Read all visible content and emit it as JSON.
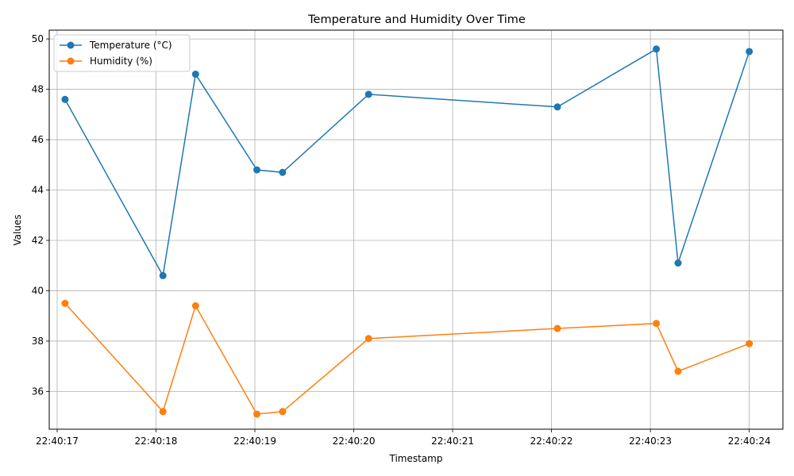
{
  "chart_data": {
    "type": "line",
    "title": "Temperature and Humidity Over Time",
    "xlabel": "Timestamp",
    "ylabel": "Values",
    "grid": true,
    "legend_position": "top-left",
    "x": [
      "22:40:17.08",
      "22:40:18.07",
      "22:40:18.40",
      "22:40:19.02",
      "22:40:19.28",
      "22:40:20.15",
      "22:40:22.06",
      "22:40:23.06",
      "22:40:23.28",
      "22:40:24.00"
    ],
    "x_ticks": [
      "22:40:17",
      "22:40:18",
      "22:40:19",
      "22:40:20",
      "22:40:21",
      "22:40:22",
      "22:40:23",
      "22:40:24"
    ],
    "y_ticks": [
      36,
      38,
      40,
      42,
      44,
      46,
      48,
      50
    ],
    "xlim": [
      "22:40:16.92",
      "22:40:24.34"
    ],
    "ylim": [
      34.5,
      50.35
    ],
    "series": [
      {
        "name": "Temperature (°C)",
        "color": "#1f77b4",
        "values": [
          47.6,
          40.6,
          48.6,
          44.8,
          44.7,
          47.8,
          47.3,
          49.6,
          41.1,
          49.5
        ]
      },
      {
        "name": "Humidity (%)",
        "color": "#ff7f0e",
        "values": [
          39.5,
          35.2,
          39.4,
          35.1,
          35.2,
          38.1,
          38.5,
          38.7,
          36.8,
          37.9
        ]
      }
    ]
  }
}
